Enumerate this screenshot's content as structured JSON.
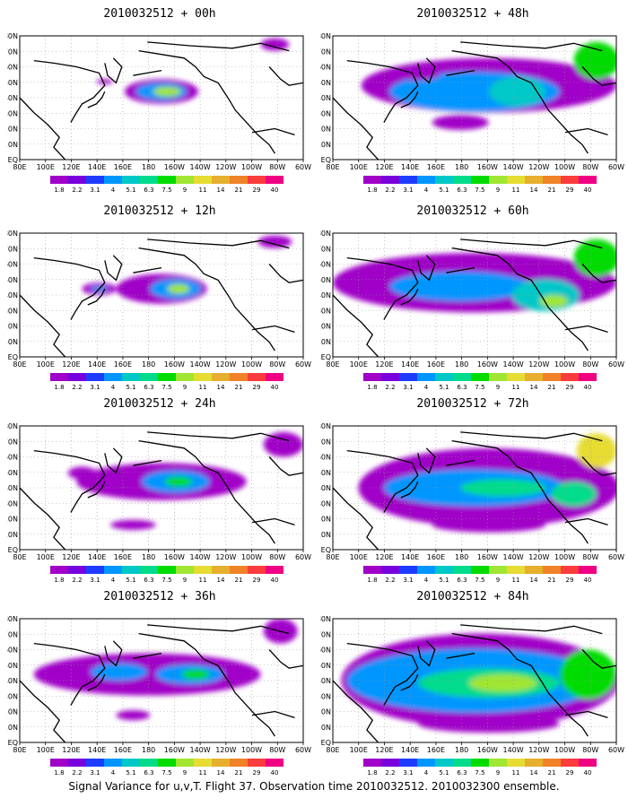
{
  "panels": [
    {
      "title": "2010032512 + 00h",
      "forecast_hour": 0
    },
    {
      "title": "2010032512 + 48h",
      "forecast_hour": 48
    },
    {
      "title": "2010032512 + 12h",
      "forecast_hour": 12
    },
    {
      "title": "2010032512 + 60h",
      "forecast_hour": 60
    },
    {
      "title": "2010032512 + 24h",
      "forecast_hour": 24
    },
    {
      "title": "2010032512 + 72h",
      "forecast_hour": 72
    },
    {
      "title": "2010032512 + 36h",
      "forecast_hour": 36
    },
    {
      "title": "2010032512 + 84h",
      "forecast_hour": 84
    }
  ],
  "lon_ticks": [
    "80E",
    "100E",
    "120E",
    "140E",
    "160E",
    "180",
    "160W",
    "140W",
    "120W",
    "100W",
    "80W",
    "60W"
  ],
  "lat_ticks": [
    "EQ",
    "10N",
    "20N",
    "30N",
    "40N",
    "50N",
    "60N",
    "70N",
    "80N"
  ],
  "colorbar": {
    "levels": [
      "1.8",
      "2.2",
      "3.1",
      "4",
      "5.1",
      "6.3",
      "7.5",
      "9",
      "11",
      "14",
      "21",
      "29",
      "40"
    ],
    "colors": [
      "#a000c8",
      "#7800dc",
      "#1e3cff",
      "#0096ff",
      "#00c8c8",
      "#00dc8c",
      "#00dc00",
      "#a0e632",
      "#e6dc32",
      "#e6af2d",
      "#f08228",
      "#fa3c3c",
      "#f00082"
    ]
  },
  "caption": "Signal Variance for u,v,T. Flight 37. Observation time 2010032512. 2010032300 ensemble."
}
